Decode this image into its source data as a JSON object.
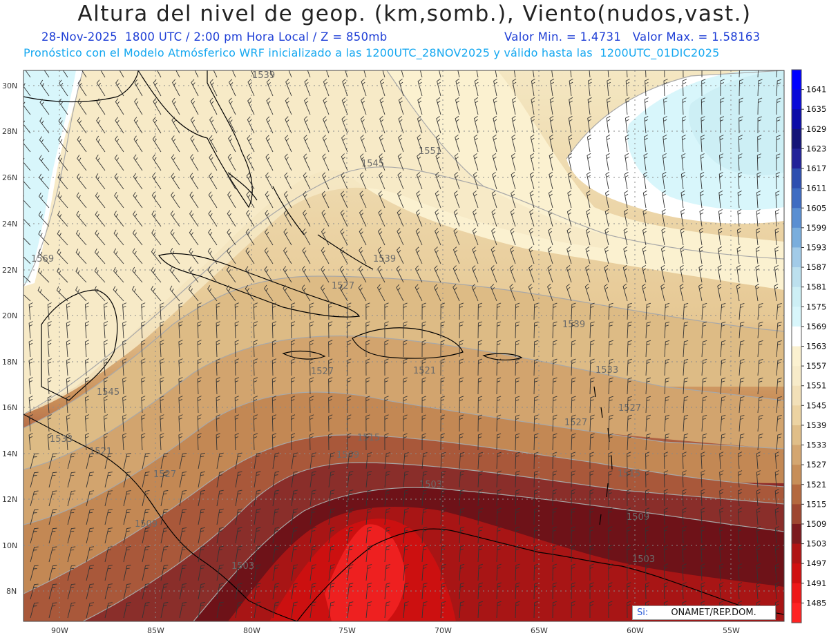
{
  "header": {
    "title": "Altura del nivel de geop. (km,somb.), Viento(nudos,vast.)",
    "date_time": "28-Nov-2025  1800 UTC / 2:00 pm Hora Local / Z = 850mb",
    "minmax": "Valor Min. = 1.4731   Valor Max. = 1.58163",
    "model_line": "Pronóstico con el Modelo Atmósferico WRF inicializado a las 1200UTC_28NOV2025 y válido hasta las  1200UTC_01DIC2025"
  },
  "axes": {
    "lat_labels": [
      "30N",
      "28N",
      "26N",
      "24N",
      "22N",
      "20N",
      "18N",
      "16N",
      "14N",
      "12N",
      "10N",
      "8N"
    ],
    "lon_labels": [
      "90W",
      "85W",
      "80W",
      "75W",
      "70W",
      "65W",
      "60W",
      "55W"
    ]
  },
  "colorbar": {
    "levels": [
      "1641",
      "1635",
      "1629",
      "1623",
      "1617",
      "1611",
      "1605",
      "1599",
      "1593",
      "1587",
      "1581",
      "1575",
      "1569",
      "1563",
      "1557",
      "1551",
      "1545",
      "1539",
      "1533",
      "1527",
      "1521",
      "1515",
      "1509",
      "1503",
      "1497",
      "1491",
      "1485"
    ],
    "colors": [
      "#0000ff",
      "#0a0ad8",
      "#0c0ca8",
      "#141478",
      "#222299",
      "#2e4fb0",
      "#3e6cc2",
      "#5a8fd2",
      "#7aaedd",
      "#a2cbe8",
      "#bce0ee",
      "#cdeff5",
      "#d8f6fb",
      "#ffffff",
      "#fbf1d0",
      "#f7ebc9",
      "#f2e0b8",
      "#ecd3a2",
      "#e0be88",
      "#d4a670",
      "#c78e58",
      "#b4683e",
      "#9e4630",
      "#7c1a1e",
      "#b01414",
      "#d01010",
      "#ee1818",
      "#ff2222"
    ]
  },
  "contour_labels": [
    {
      "text": "1539"
    },
    {
      "text": "1551"
    },
    {
      "text": "1545"
    },
    {
      "text": "1569"
    },
    {
      "text": "1539"
    },
    {
      "text": "1527"
    },
    {
      "text": "1539"
    },
    {
      "text": "1533"
    },
    {
      "text": "1527"
    },
    {
      "text": "1521"
    },
    {
      "text": "1545"
    },
    {
      "text": "1533"
    },
    {
      "text": "1521"
    },
    {
      "text": "1527"
    },
    {
      "text": "1515"
    },
    {
      "text": "1509"
    },
    {
      "text": "1503"
    },
    {
      "text": "1515"
    },
    {
      "text": "1509"
    },
    {
      "text": "1509"
    },
    {
      "text": "1503"
    },
    {
      "text": "1503"
    },
    {
      "text": "1527"
    },
    {
      "text": "1527"
    },
    {
      "text": "1521"
    }
  ],
  "credit": {
    "prefix": "Si:",
    "text": "ONAMET/REP.DOM."
  }
}
